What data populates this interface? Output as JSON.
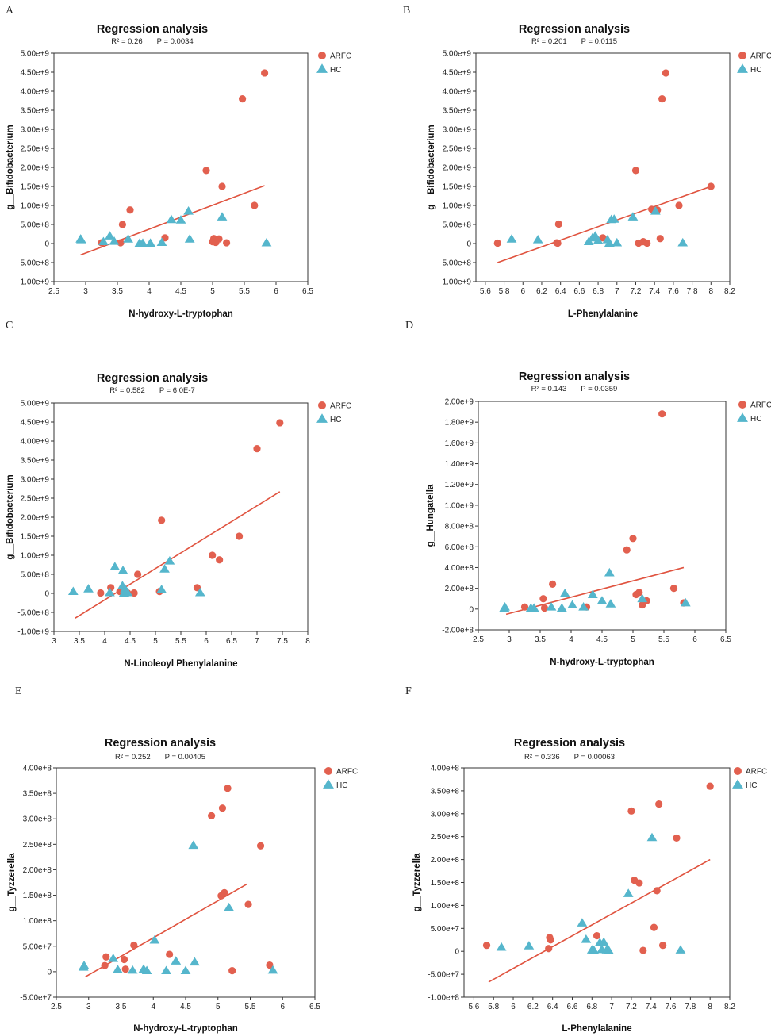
{
  "colors": {
    "arfc": "#E2604F",
    "hc": "#55B6CC",
    "line": "#E0533F",
    "axis": "#333333"
  },
  "chart_data": [
    {
      "type": "scatter",
      "panel": "A",
      "title": "Regression analysis",
      "r2": "R² = 0.26",
      "p": "P = 0.0034",
      "xlabel": "N-hydroxy-L-tryptophan",
      "ylabel": "g__Bifidobacterium",
      "xlim": [
        2.5,
        6.5
      ],
      "ylim": [
        -1000000000.0,
        5000000000.0
      ],
      "xticks": [
        2.5,
        3,
        3.5,
        4,
        4.5,
        5,
        5.5,
        6,
        6.5
      ],
      "xtick_labels": [
        "2.5",
        "3",
        "3.5",
        "4",
        "4.5",
        "5",
        "5.5",
        "6",
        "6.5"
      ],
      "yticks": [
        -1000000000.0,
        -500000000.0,
        0,
        500000000.0,
        1000000000.0,
        1500000000.0,
        2000000000.0,
        2500000000.0,
        3000000000.0,
        3500000000.0,
        4000000000.0,
        4500000000.0,
        5000000000.0
      ],
      "ytick_labels": [
        "-1.00e+9",
        "-5.00e+8",
        "0",
        "5.00e+8",
        "1.00e+9",
        "1.50e+9",
        "2.00e+9",
        "2.50e+9",
        "3.00e+9",
        "3.50e+9",
        "4.00e+9",
        "4.50e+9",
        "5.00e+9"
      ],
      "legend": [
        "ARFC",
        "HC"
      ],
      "fit": {
        "x": [
          2.92,
          5.82
        ],
        "y": [
          -300000000.0,
          1520000000.0
        ]
      },
      "series": [
        {
          "name": "ARFC",
          "x": [
            3.25,
            3.55,
            3.58,
            3.7,
            4.25,
            4.9,
            5.0,
            5.02,
            5.05,
            5.1,
            5.15,
            5.22,
            5.47,
            5.66,
            5.82
          ],
          "y": [
            20000000.0,
            20000000.0,
            500000000.0,
            880000000.0,
            150000000.0,
            1920000000.0,
            50000000.0,
            130000000.0,
            30000000.0,
            120000000.0,
            1500000000.0,
            20000000.0,
            3800000000.0,
            1000000000.0,
            4480000000.0
          ]
        },
        {
          "name": "HC",
          "x": [
            2.92,
            2.93,
            3.28,
            3.38,
            3.45,
            3.67,
            3.85,
            3.9,
            4.02,
            4.2,
            4.35,
            4.5,
            4.62,
            4.64,
            5.15,
            5.85
          ],
          "y": [
            120000000.0,
            100000000.0,
            50000000.0,
            200000000.0,
            60000000.0,
            120000000.0,
            10000000.0,
            10000000.0,
            10000000.0,
            30000000.0,
            630000000.0,
            620000000.0,
            850000000.0,
            120000000.0,
            700000000.0,
            20000000.0
          ]
        }
      ]
    },
    {
      "type": "scatter",
      "panel": "B",
      "title": "Regression analysis",
      "r2": "R² = 0.201",
      "p": "P = 0.0115",
      "xlabel": "L-Phenylalanine",
      "ylabel": "g__Bifidobacterium",
      "xlim": [
        5.5,
        8.2
      ],
      "ylim": [
        -1000000000.0,
        5000000000.0
      ],
      "xticks": [
        5.6,
        5.8,
        6,
        6.2,
        6.4,
        6.6,
        6.8,
        7,
        7.2,
        7.4,
        7.6,
        7.8,
        8,
        8.2
      ],
      "xtick_labels": [
        "5.6",
        "5.8",
        "6",
        "6.2",
        "6.4",
        "6.6",
        "6.8",
        "7",
        "7.2",
        "7.4",
        "7.6",
        "7.8",
        "8",
        "8.2"
      ],
      "yticks": [
        -1000000000.0,
        -500000000.0,
        0,
        500000000.0,
        1000000000.0,
        1500000000.0,
        2000000000.0,
        2500000000.0,
        3000000000.0,
        3500000000.0,
        4000000000.0,
        4500000000.0,
        5000000000.0
      ],
      "ytick_labels": [
        "-1.00e+9",
        "-5.00e+8",
        "0",
        "5.00e+8",
        "1.00e+9",
        "1.50e+9",
        "2.00e+9",
        "2.50e+9",
        "3.00e+9",
        "3.50e+9",
        "4.00e+9",
        "4.50e+9",
        "5.00e+9"
      ],
      "legend": [
        "ARFC",
        "HC"
      ],
      "fit": {
        "x": [
          5.73,
          8.0
        ],
        "y": [
          -500000000.0,
          1500000000.0
        ]
      },
      "series": [
        {
          "name": "ARFC",
          "x": [
            5.73,
            6.36,
            6.37,
            6.38,
            6.85,
            7.2,
            7.23,
            7.28,
            7.32,
            7.37,
            7.43,
            7.46,
            7.48,
            7.52,
            7.66,
            8.0
          ],
          "y": [
            10000000.0,
            20000000.0,
            10000000.0,
            510000000.0,
            150000000.0,
            1920000000.0,
            10000000.0,
            50000000.0,
            10000000.0,
            900000000.0,
            880000000.0,
            130000000.0,
            3800000000.0,
            4480000000.0,
            1000000000.0,
            1500000000.0
          ]
        },
        {
          "name": "HC",
          "x": [
            5.88,
            6.16,
            6.7,
            6.74,
            6.77,
            6.8,
            6.9,
            6.92,
            6.94,
            6.97,
            7.0,
            7.17,
            7.41,
            7.7
          ],
          "y": [
            120000000.0,
            100000000.0,
            50000000.0,
            150000000.0,
            200000000.0,
            80000000.0,
            100000000.0,
            10000000.0,
            630000000.0,
            640000000.0,
            20000000.0,
            700000000.0,
            850000000.0,
            20000000.0
          ]
        }
      ]
    },
    {
      "type": "scatter",
      "panel": "C",
      "title": "Regression analysis",
      "r2": "R² = 0.582",
      "p": "P = 6.0E-7",
      "xlabel": "N-Linoleoyl Phenylalanine",
      "ylabel": "g__Bifidobacterium",
      "xlim": [
        3,
        8
      ],
      "ylim": [
        -1000000000.0,
        5000000000.0
      ],
      "xticks": [
        3,
        3.5,
        4,
        4.5,
        5,
        5.5,
        6,
        6.5,
        7,
        7.5,
        8
      ],
      "xtick_labels": [
        "3",
        "3.5",
        "4",
        "4.5",
        "5",
        "5.5",
        "6",
        "6.5",
        "7",
        "7.5",
        "8"
      ],
      "yticks": [
        -1000000000.0,
        -500000000.0,
        0,
        500000000.0,
        1000000000.0,
        1500000000.0,
        2000000000.0,
        2500000000.0,
        3000000000.0,
        3500000000.0,
        4000000000.0,
        4500000000.0,
        5000000000.0
      ],
      "ytick_labels": [
        "-1.00e+9",
        "-5.00e+8",
        "0",
        "5.00e+8",
        "1.00e+9",
        "1.50e+9",
        "2.00e+9",
        "2.50e+9",
        "3.00e+9",
        "3.50e+9",
        "4.00e+9",
        "4.50e+9",
        "5.00e+9"
      ],
      "legend": [
        "ARFC",
        "HC"
      ],
      "fit": {
        "x": [
          3.42,
          7.45
        ],
        "y": [
          -650000000.0,
          2670000000.0
        ]
      },
      "series": [
        {
          "name": "ARFC",
          "x": [
            3.92,
            4.12,
            4.3,
            4.45,
            4.58,
            4.65,
            5.08,
            5.12,
            5.82,
            6.12,
            6.26,
            6.65,
            7.0,
            7.45
          ],
          "y": [
            10000000.0,
            150000000.0,
            50000000.0,
            10000000.0,
            10000000.0,
            500000000.0,
            50000000.0,
            1920000000.0,
            150000000.0,
            1000000000.0,
            880000000.0,
            1500000000.0,
            3800000000.0,
            4480000000.0
          ]
        },
        {
          "name": "HC",
          "x": [
            3.38,
            3.68,
            4.1,
            4.2,
            4.35,
            4.36,
            4.38,
            4.4,
            4.42,
            4.45,
            5.12,
            5.18,
            5.28,
            5.88
          ],
          "y": [
            50000000.0,
            120000000.0,
            20000000.0,
            700000000.0,
            200000000.0,
            600000000.0,
            10000000.0,
            120000000.0,
            30000000.0,
            20000000.0,
            100000000.0,
            640000000.0,
            850000000.0,
            20000000.0
          ]
        }
      ]
    },
    {
      "type": "scatter",
      "panel": "D",
      "title": "Regression analysis",
      "r2": "R² = 0.143",
      "p": "P = 0.0359",
      "xlabel": "N-hydroxy-L-tryptophan",
      "ylabel": "g__Hungatella",
      "xlim": [
        2.5,
        6.5
      ],
      "ylim": [
        -200000000.0,
        2000000000.0
      ],
      "xticks": [
        2.5,
        3,
        3.5,
        4,
        4.5,
        5,
        5.5,
        6,
        6.5
      ],
      "xtick_labels": [
        "2.5",
        "3",
        "3.5",
        "4",
        "4.5",
        "5",
        "5.5",
        "6",
        "6.5"
      ],
      "yticks": [
        -200000000.0,
        0,
        200000000.0,
        400000000.0,
        600000000.0,
        800000000.0,
        1000000000.0,
        1200000000.0,
        1400000000.0,
        1600000000.0,
        1800000000.0,
        2000000000.0
      ],
      "ytick_labels": [
        "-2.00e+8",
        "0",
        "2.00e+8",
        "4.00e+8",
        "6.00e+8",
        "8.00e+8",
        "1.00e+9",
        "1.20e+9",
        "1.40e+9",
        "1.60e+9",
        "1.80e+9",
        "2.00e+9"
      ],
      "legend": [
        "ARFC",
        "HC"
      ],
      "fit": {
        "x": [
          2.95,
          5.82
        ],
        "y": [
          -50000000.0,
          400000000.0
        ]
      },
      "series": [
        {
          "name": "ARFC",
          "x": [
            3.25,
            3.55,
            3.57,
            3.7,
            4.25,
            4.9,
            5.0,
            5.05,
            5.1,
            5.15,
            5.22,
            5.47,
            5.66,
            5.82
          ],
          "y": [
            20000000.0,
            100000000.0,
            10000000.0,
            240000000.0,
            20000000.0,
            570000000.0,
            680000000.0,
            140000000.0,
            160000000.0,
            40000000.0,
            80000000.0,
            1880000000.0,
            200000000.0,
            60000000.0
          ]
        },
        {
          "name": "HC",
          "x": [
            2.92,
            2.93,
            3.35,
            3.4,
            3.68,
            3.85,
            3.9,
            4.02,
            4.2,
            4.35,
            4.5,
            4.62,
            4.64,
            5.15,
            5.85
          ],
          "y": [
            10000000.0,
            20000000.0,
            10000000.0,
            10000000.0,
            20000000.0,
            10000000.0,
            150000000.0,
            40000000.0,
            20000000.0,
            140000000.0,
            80000000.0,
            350000000.0,
            50000000.0,
            100000000.0,
            60000000.0
          ]
        }
      ]
    },
    {
      "type": "scatter",
      "panel": "E",
      "title": "Regression analysis",
      "r2": "R² = 0.252",
      "p": "P = 0.00405",
      "xlabel": "N-hydroxy-L-tryptophan",
      "ylabel": "g__Tyzzerella",
      "xlim": [
        2.5,
        6.5
      ],
      "ylim": [
        -50000000.0,
        400000000.0
      ],
      "xticks": [
        2.5,
        3,
        3.5,
        4,
        4.5,
        5,
        5.5,
        6,
        6.5
      ],
      "xtick_labels": [
        "2.5",
        "3",
        "3.5",
        "4",
        "4.5",
        "5",
        "5.5",
        "6",
        "6.5"
      ],
      "yticks": [
        -50000000.0,
        0,
        50000000.0,
        100000000.0,
        150000000.0,
        200000000.0,
        250000000.0,
        300000000.0,
        350000000.0,
        400000000.0
      ],
      "ytick_labels": [
        "-5.00e+7",
        "0",
        "5.00e+7",
        "1.00e+8",
        "1.50e+8",
        "2.00e+8",
        "2.50e+8",
        "3.00e+8",
        "3.50e+8",
        "4.00e+8"
      ],
      "legend": [
        "ARFC",
        "HC"
      ],
      "fit": {
        "x": [
          2.95,
          5.45
        ],
        "y": [
          -10000000.0,
          172000000.0
        ]
      },
      "series": [
        {
          "name": "ARFC",
          "x": [
            3.25,
            3.27,
            3.55,
            3.57,
            3.7,
            4.25,
            4.9,
            5.05,
            5.07,
            5.1,
            5.15,
            5.22,
            5.47,
            5.66,
            5.8
          ],
          "y": [
            12000000.0,
            29000000.0,
            24000000.0,
            5000000.0,
            52000000.0,
            34000000.0,
            306000000.0,
            149000000.0,
            321000000.0,
            155000000.0,
            360000000.0,
            2000000.0,
            132000000.0,
            247000000.0,
            13000000.0
          ]
        },
        {
          "name": "HC",
          "x": [
            2.92,
            2.93,
            3.38,
            3.45,
            3.68,
            3.85,
            3.9,
            4.02,
            4.2,
            4.35,
            4.5,
            4.62,
            4.64,
            5.17,
            5.85
          ],
          "y": [
            9000000.0,
            12000000.0,
            26000000.0,
            4000000.0,
            3000000.0,
            5000000.0,
            2000000.0,
            62000000.0,
            2000000.0,
            21000000.0,
            2000000.0,
            248000000.0,
            19000000.0,
            126000000.0,
            3000000.0
          ]
        }
      ]
    },
    {
      "type": "scatter",
      "panel": "F",
      "title": "Regression analysis",
      "r2": "R² = 0.336",
      "p": "P = 0.00063",
      "xlabel": "L-Phenylalanine",
      "ylabel": "g__Tyzzerella",
      "xlim": [
        5.5,
        8.2
      ],
      "ylim": [
        -100000000.0,
        400000000.0
      ],
      "xticks": [
        5.6,
        5.8,
        6,
        6.2,
        6.4,
        6.6,
        6.8,
        7,
        7.2,
        7.4,
        7.6,
        7.8,
        8,
        8.2
      ],
      "xtick_labels": [
        "5.6",
        "5.8",
        "6",
        "6.2",
        "6.4",
        "6.6",
        "6.8",
        "7",
        "7.2",
        "7.4",
        "7.6",
        "7.8",
        "8",
        "8.2"
      ],
      "yticks": [
        -100000000.0,
        -50000000.0,
        0,
        50000000.0,
        100000000.0,
        150000000.0,
        200000000.0,
        250000000.0,
        300000000.0,
        350000000.0,
        400000000.0
      ],
      "ytick_labels": [
        "-1.00e+8",
        "-5.00e+7",
        "0",
        "5.00e+7",
        "1.00e+8",
        "1.50e+8",
        "2.00e+8",
        "2.50e+8",
        "3.00e+8",
        "3.50e+8",
        "4.00e+8"
      ],
      "legend": [
        "ARFC",
        "HC"
      ],
      "fit": {
        "x": [
          5.75,
          8.0
        ],
        "y": [
          -67000000.0,
          200000000.0
        ]
      },
      "series": [
        {
          "name": "ARFC",
          "x": [
            5.73,
            6.36,
            6.37,
            6.38,
            6.85,
            7.2,
            7.23,
            7.28,
            7.32,
            7.43,
            7.46,
            7.48,
            7.52,
            7.66,
            8.0
          ],
          "y": [
            13000000.0,
            6000000.0,
            30000000.0,
            25000000.0,
            34000000.0,
            306000000.0,
            155000000.0,
            149000000.0,
            2000000.0,
            52000000.0,
            132000000.0,
            321000000.0,
            13000000.0,
            247000000.0,
            360000000.0
          ]
        },
        {
          "name": "HC",
          "x": [
            5.88,
            6.16,
            6.7,
            6.74,
            6.8,
            6.82,
            6.88,
            6.9,
            6.92,
            6.95,
            6.97,
            7.17,
            7.41,
            7.7
          ],
          "y": [
            9000000.0,
            12000000.0,
            62000000.0,
            26000000.0,
            3000000.0,
            2000000.0,
            19000000.0,
            4000000.0,
            20000000.0,
            3000000.0,
            2000000.0,
            126000000.0,
            248000000.0,
            3000000.0
          ]
        }
      ]
    }
  ]
}
